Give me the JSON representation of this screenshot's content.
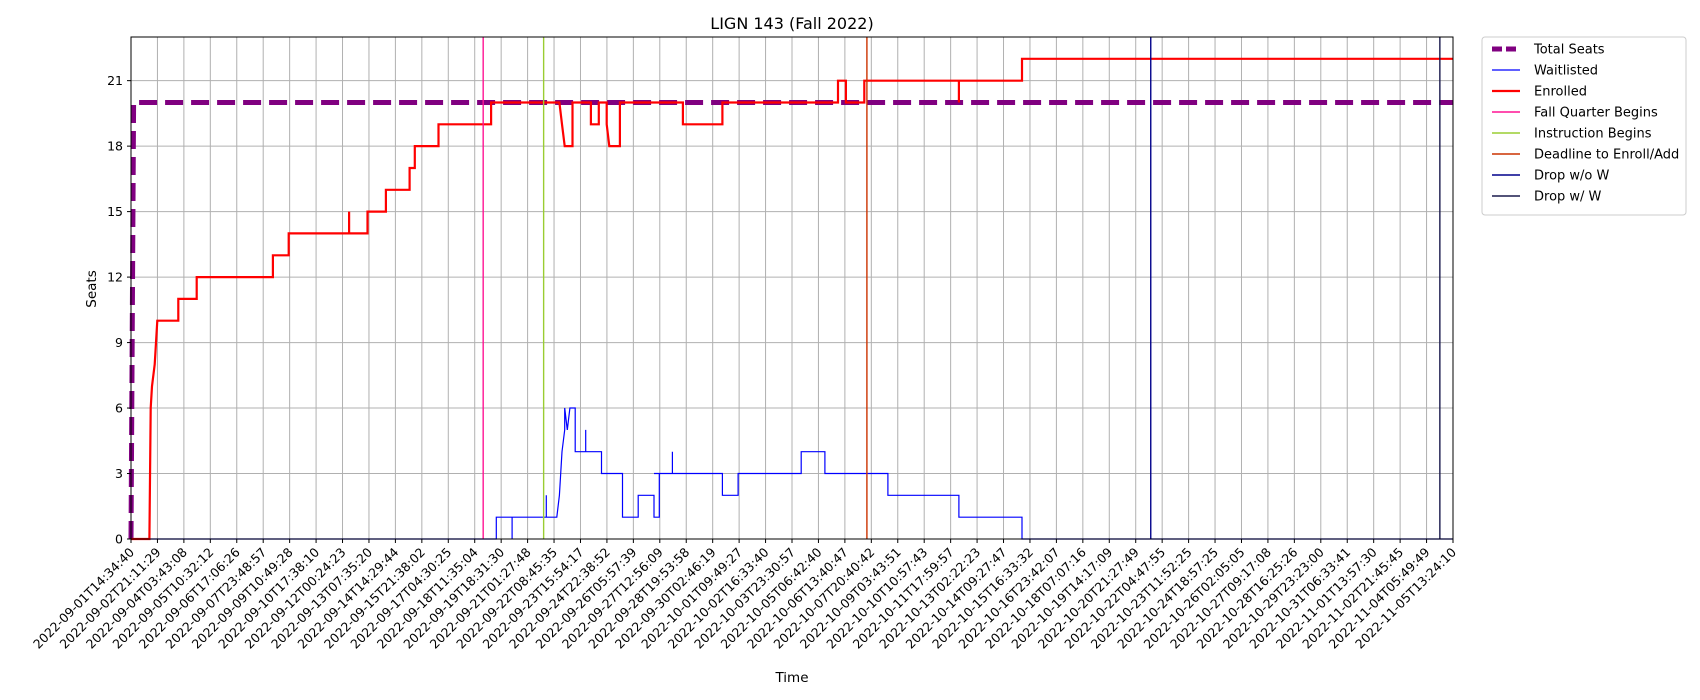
{
  "chart_data": {
    "type": "line",
    "title": "LIGN 143 (Fall 2022)",
    "xlabel": "Time",
    "ylabel": "Seats",
    "ylim": [
      0,
      23
    ],
    "yticks": [
      0,
      3,
      6,
      9,
      12,
      15,
      18,
      21
    ],
    "grid": true,
    "legend_position": "outside top-right",
    "x_range_days": [
      0,
      50.3
    ],
    "x_tick_labels": [
      "2022-09-01T14:34:40",
      "2022-09-02T21:11:29",
      "2022-09-04T03:43:08",
      "2022-09-05T10:32:12",
      "2022-09-06T17:06:26",
      "2022-09-07T23:48:57",
      "2022-09-09T10:49:28",
      "2022-09-10T17:38:10",
      "2022-09-12T00:24:23",
      "2022-09-13T07:35:20",
      "2022-09-14T14:29:44",
      "2022-09-15T21:38:02",
      "2022-09-17T04:30:25",
      "2022-09-18T11:35:04",
      "2022-09-19T18:31:30",
      "2022-09-21T01:27:48",
      "2022-09-22T08:45:35",
      "2022-09-23T15:54:17",
      "2022-09-24T22:38:52",
      "2022-09-26T05:57:39",
      "2022-09-27T12:56:09",
      "2022-09-28T19:53:58",
      "2022-09-30T02:46:19",
      "2022-10-01T09:49:27",
      "2022-10-02T16:33:40",
      "2022-10-03T23:30:57",
      "2022-10-05T06:42:40",
      "2022-10-06T13:40:47",
      "2022-10-07T20:40:42",
      "2022-10-09T03:43:51",
      "2022-10-10T10:57:43",
      "2022-10-11T17:59:57",
      "2022-10-13T02:22:23",
      "2022-10-14T09:27:47",
      "2022-10-15T16:33:32",
      "2022-10-16T23:42:07",
      "2022-10-18T07:07:16",
      "2022-10-19T14:17:09",
      "2022-10-20T21:27:49",
      "2022-10-22T04:47:55",
      "2022-10-23T11:52:25",
      "2022-10-24T18:57:25",
      "2022-10-26T02:05:05",
      "2022-10-27T09:17:08",
      "2022-10-28T16:25:26",
      "2022-10-29T23:23:00",
      "2022-10-31T06:33:41",
      "2022-11-01T13:57:30",
      "2022-11-02T21:45:45",
      "2022-11-04T05:49:49",
      "2022-11-05T13:24:10"
    ],
    "series": [
      {
        "name": "Total Seats",
        "color": "#800080",
        "style": "dashed",
        "points": [
          [
            0,
            0
          ],
          [
            0.1,
            20
          ],
          [
            50.3,
            20
          ]
        ]
      },
      {
        "name": "Waitlisted",
        "color": "#0000ff",
        "style": "solid",
        "points": [
          [
            0,
            0
          ],
          [
            13.9,
            0
          ],
          [
            13.9,
            1
          ],
          [
            14.5,
            1
          ],
          [
            14.5,
            0
          ],
          [
            14.5,
            1
          ],
          [
            15.8,
            1
          ],
          [
            15.8,
            2
          ],
          [
            15.8,
            1
          ],
          [
            16.2,
            1
          ],
          [
            16.3,
            2
          ],
          [
            16.4,
            4
          ],
          [
            16.5,
            5
          ],
          [
            16.5,
            6
          ],
          [
            16.6,
            5
          ],
          [
            16.7,
            6
          ],
          [
            16.9,
            6
          ],
          [
            16.9,
            4
          ],
          [
            17.3,
            4
          ],
          [
            17.3,
            5
          ],
          [
            17.3,
            4
          ],
          [
            17.9,
            4
          ],
          [
            17.9,
            3
          ],
          [
            18.7,
            3
          ],
          [
            18.7,
            1
          ],
          [
            19.3,
            1
          ],
          [
            19.3,
            2
          ],
          [
            19.9,
            2
          ],
          [
            19.9,
            1
          ],
          [
            20.1,
            1
          ],
          [
            20.1,
            3
          ],
          [
            19.9,
            3
          ],
          [
            20.1,
            3
          ],
          [
            20.1,
            3
          ],
          [
            20.1,
            3
          ],
          [
            20.2,
            3
          ],
          [
            20.2,
            3
          ],
          [
            20.3,
            3
          ],
          [
            20.4,
            3
          ],
          [
            20.4,
            3
          ],
          [
            20.5,
            3
          ],
          [
            20.6,
            3
          ],
          [
            20.6,
            3
          ],
          [
            20.6,
            4
          ],
          [
            20.6,
            3
          ],
          [
            22.5,
            3
          ],
          [
            22.5,
            2
          ],
          [
            23.1,
            2
          ],
          [
            23.1,
            3
          ],
          [
            25.5,
            3
          ],
          [
            25.5,
            4
          ],
          [
            26.4,
            4
          ],
          [
            26.4,
            3
          ],
          [
            28.8,
            3
          ],
          [
            28.8,
            2
          ],
          [
            30.4,
            2
          ],
          [
            31.5,
            2
          ],
          [
            31.5,
            1
          ],
          [
            33.9,
            1
          ],
          [
            33.9,
            0
          ],
          [
            50.3,
            0
          ]
        ]
      },
      {
        "name": "Enrolled",
        "color": "#ff0000",
        "style": "solid",
        "points": [
          [
            0,
            0
          ],
          [
            0.7,
            0
          ],
          [
            0.75,
            6
          ],
          [
            0.8,
            7
          ],
          [
            0.9,
            8
          ],
          [
            0.95,
            9
          ],
          [
            1.0,
            10
          ],
          [
            1.8,
            10
          ],
          [
            1.8,
            11
          ],
          [
            2.5,
            11
          ],
          [
            2.5,
            12
          ],
          [
            5.4,
            12
          ],
          [
            5.4,
            13
          ],
          [
            6.0,
            13
          ],
          [
            6.0,
            14
          ],
          [
            8.3,
            14
          ],
          [
            8.3,
            15
          ],
          [
            8.3,
            14
          ],
          [
            9.0,
            14
          ],
          [
            9.0,
            15
          ],
          [
            9.7,
            15
          ],
          [
            9.7,
            16
          ],
          [
            10.6,
            16
          ],
          [
            10.6,
            17
          ],
          [
            10.8,
            17
          ],
          [
            10.8,
            18
          ],
          [
            11.7,
            18
          ],
          [
            11.7,
            19
          ],
          [
            13.7,
            19
          ],
          [
            13.7,
            20
          ],
          [
            16.2,
            20
          ],
          [
            16.2,
            20
          ],
          [
            16.3,
            20
          ],
          [
            16.4,
            19
          ],
          [
            16.5,
            18
          ],
          [
            16.8,
            18
          ],
          [
            16.8,
            20
          ],
          [
            17.5,
            20
          ],
          [
            17.5,
            19
          ],
          [
            17.8,
            19
          ],
          [
            17.8,
            20
          ],
          [
            18.1,
            20
          ],
          [
            18.1,
            19
          ],
          [
            18.2,
            18
          ],
          [
            18.6,
            18
          ],
          [
            18.6,
            20
          ],
          [
            21.0,
            20
          ],
          [
            21.0,
            19
          ],
          [
            22.5,
            19
          ],
          [
            22.5,
            20
          ],
          [
            26.9,
            20
          ],
          [
            26.9,
            21
          ],
          [
            27.2,
            21
          ],
          [
            27.2,
            20
          ],
          [
            27.9,
            20
          ],
          [
            27.9,
            21
          ],
          [
            30.4,
            21
          ],
          [
            31.5,
            21
          ],
          [
            31.5,
            20
          ],
          [
            31.5,
            21
          ],
          [
            33.9,
            21
          ],
          [
            33.9,
            22
          ],
          [
            50.3,
            22
          ]
        ]
      }
    ],
    "vlines": [
      {
        "name": "Fall Quarter Begins",
        "color": "#ff1493",
        "x_day": 13.4
      },
      {
        "name": "Instruction Begins",
        "color": "#9acd32",
        "x_day": 15.7
      },
      {
        "name": "Deadline to Enroll/Add",
        "color": "#cc3300",
        "x_day": 28.0
      },
      {
        "name": "Drop w/o W",
        "color": "#00008b",
        "x_day": 38.8
      },
      {
        "name": "Drop w/ W",
        "color": "#1a1a4d",
        "x_day": 49.8
      }
    ]
  }
}
